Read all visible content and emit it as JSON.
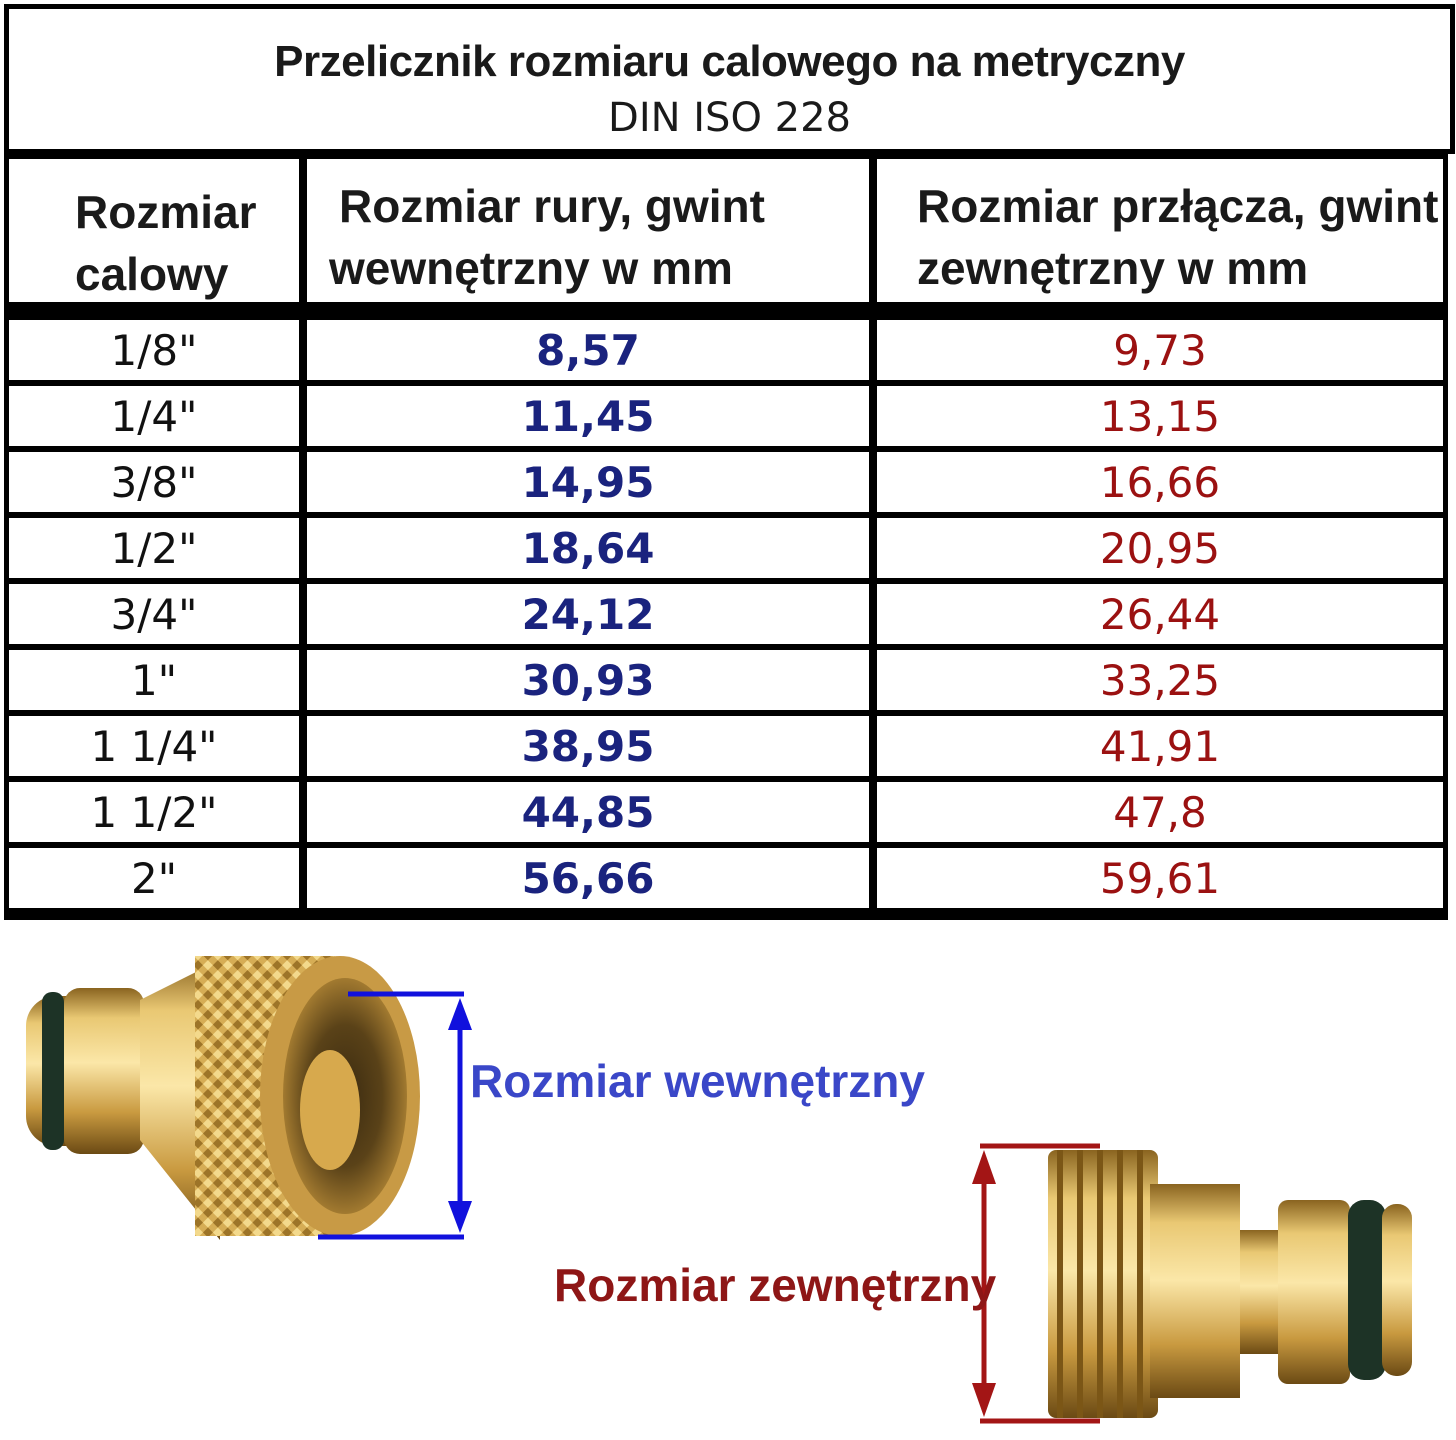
{
  "title": {
    "main": "Przelicznik rozmiaru calowego na metryczny",
    "sub": "DIN ISO 228"
  },
  "table": {
    "headers": [
      {
        "line1": "Rozmiar",
        "line2": "calowy"
      },
      {
        "line1": "Rozmiar rury, gwint",
        "line2": "wewnętrzny w mm"
      },
      {
        "line1": "Rozmiar przłącza, gwint",
        "line2": "zewnętrzny w mm"
      }
    ],
    "rows": [
      {
        "inch": "1/8\"",
        "internal": "8,57",
        "external": "9,73"
      },
      {
        "inch": "1/4\"",
        "internal": "11,45",
        "external": "13,15"
      },
      {
        "inch": "3/8\"",
        "internal": "14,95",
        "external": "16,66"
      },
      {
        "inch": "1/2\"",
        "internal": "18,64",
        "external": "20,95"
      },
      {
        "inch": "3/4\"",
        "internal": "24,12",
        "external": "26,44"
      },
      {
        "inch": "1\"",
        "internal": "30,93",
        "external": "33,25"
      },
      {
        "inch": "1 1/4\"",
        "internal": "38,95",
        "external": "41,91"
      },
      {
        "inch": "1 1/2\"",
        "internal": "44,85",
        "external": "47,8"
      },
      {
        "inch": "2\"",
        "internal": "56,66",
        "external": "59,61"
      }
    ]
  },
  "illustration": {
    "internal_label": "Rozmiar wewnętrzny",
    "external_label": "Rozmiar zewnętrzny"
  },
  "colors": {
    "internal_values": "#1a237e",
    "external_values": "#9b1111",
    "internal_label": "#3a47c8",
    "internal_arrow": "#1111dd",
    "external_label": "#8e1616",
    "external_arrow": "#a31515",
    "brass": "#d9b25a"
  }
}
